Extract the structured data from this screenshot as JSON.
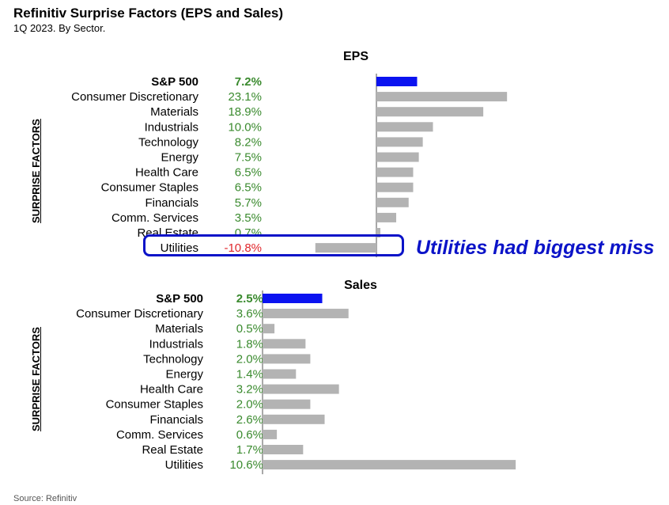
{
  "header": {
    "title": "Refinitiv Surprise Factors (EPS and Sales)",
    "subtitle": "1Q 2023. By Sector."
  },
  "axis_side_label": "SURPRISE FACTORS",
  "callout": "Utilities had biggest miss",
  "source": "Source: Refinitiv",
  "colors": {
    "highlight": "#0b13f0",
    "bar": "#b3b3b3",
    "positive_text": "#3a8a2e",
    "negative_text": "#e0262b",
    "callout": "#0b13c8"
  },
  "chart_data": [
    {
      "type": "bar",
      "orientation": "horizontal",
      "title": "EPS",
      "categories": [
        "S&P 500",
        "Consumer Discretionary",
        "Materials",
        "Industrials",
        "Technology",
        "Energy",
        "Health Care",
        "Consumer Staples",
        "Financials",
        "Comm. Services",
        "Real Estate",
        "Utilities"
      ],
      "values": [
        7.2,
        23.1,
        18.9,
        10.0,
        8.2,
        7.5,
        6.5,
        6.5,
        5.7,
        3.5,
        0.7,
        -10.8
      ],
      "value_labels": [
        "7.2%",
        "23.1%",
        "18.9%",
        "10.0%",
        "8.2%",
        "7.5%",
        "6.5%",
        "6.5%",
        "5.7%",
        "3.5%",
        "0.7%",
        "-10.8%"
      ],
      "highlight_index": 0
    },
    {
      "type": "bar",
      "orientation": "horizontal",
      "title": "Sales",
      "categories": [
        "S&P 500",
        "Consumer Discretionary",
        "Materials",
        "Industrials",
        "Technology",
        "Energy",
        "Health Care",
        "Consumer Staples",
        "Financials",
        "Comm. Services",
        "Real Estate",
        "Utilities"
      ],
      "values": [
        2.5,
        3.6,
        0.5,
        1.8,
        2.0,
        1.4,
        3.2,
        2.0,
        2.6,
        0.6,
        1.7,
        10.6
      ],
      "value_labels": [
        "2.5%",
        "3.6%",
        "0.5%",
        "1.8%",
        "2.0%",
        "1.4%",
        "3.2%",
        "2.0%",
        "2.6%",
        "0.6%",
        "1.7%",
        "10.6%"
      ],
      "highlight_index": 0
    }
  ]
}
